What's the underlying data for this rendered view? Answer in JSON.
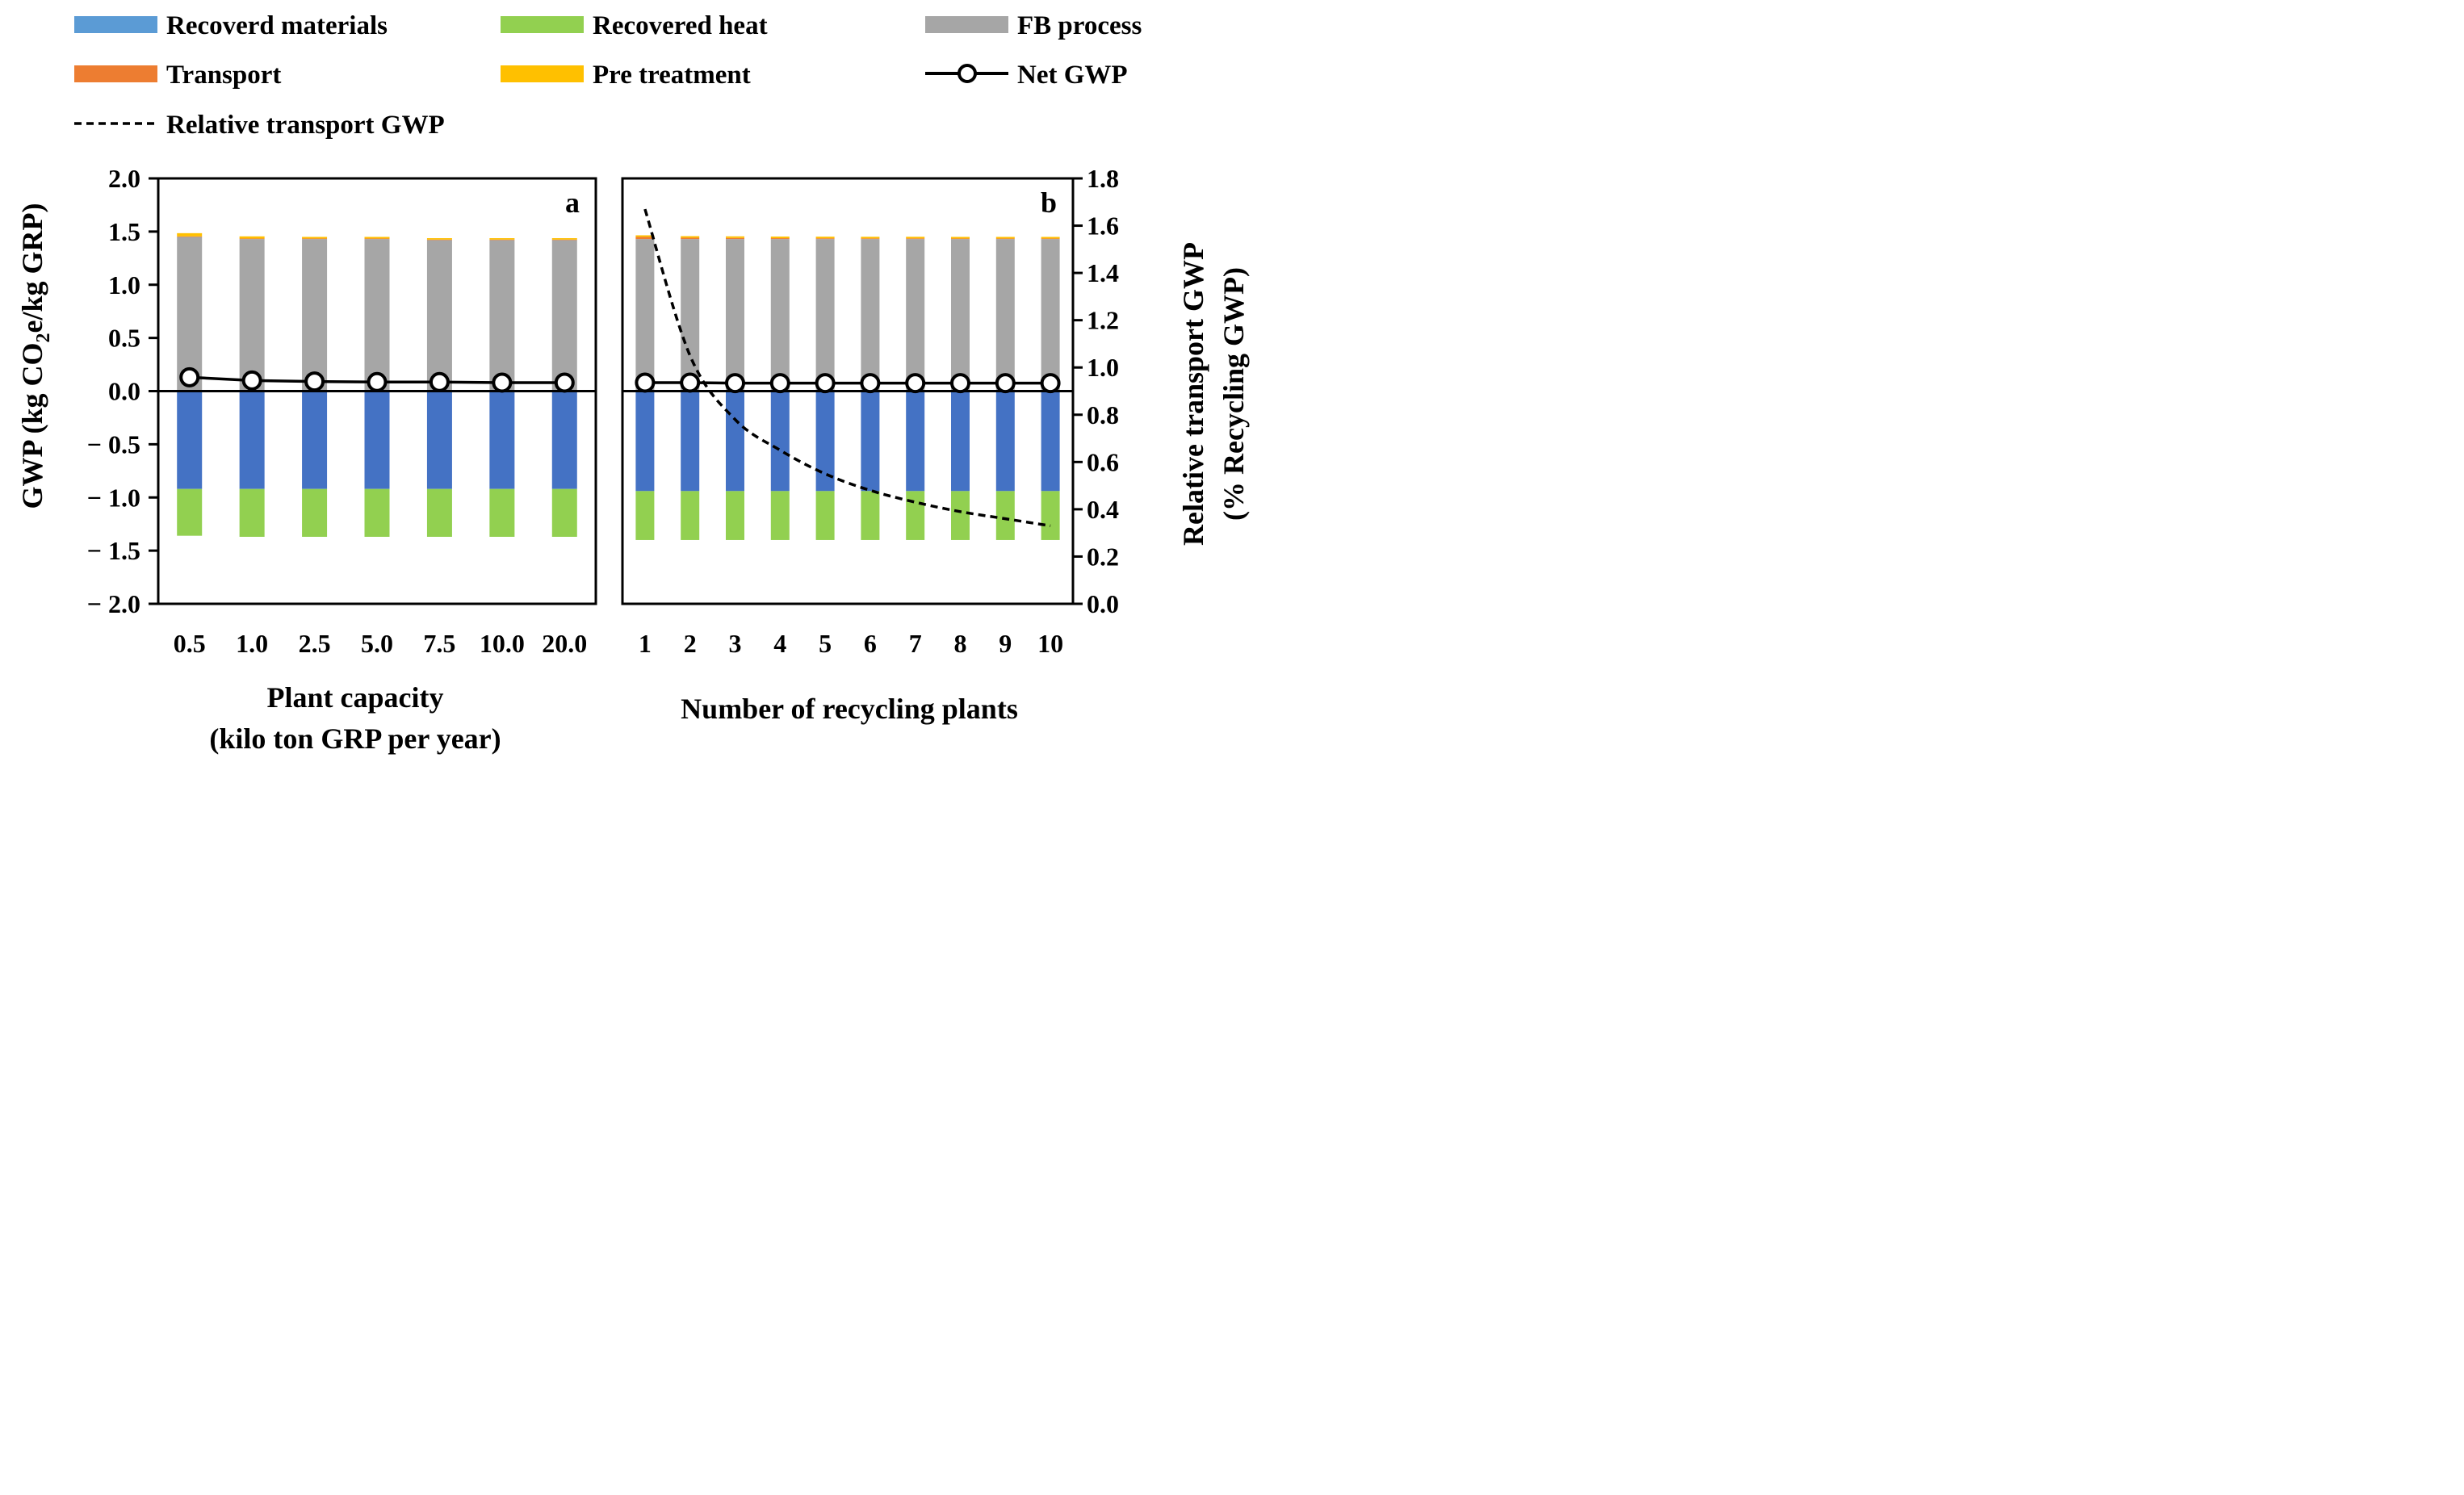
{
  "colors": {
    "recovered_materials": "#4472C4",
    "recovered_heat": "#92D050",
    "fb_process": "#A6A6A6",
    "transport": "#ED7D31",
    "pre_treatment": "#FFC000",
    "legend_materials_swatch": "#5B9BD5"
  },
  "legend": [
    {
      "key": "recovered_materials",
      "label": "Recoverd materials",
      "kind": "bar"
    },
    {
      "key": "recovered_heat",
      "label": "Recovered heat",
      "kind": "bar"
    },
    {
      "key": "fb_process",
      "label": "FB process",
      "kind": "bar"
    },
    {
      "key": "transport",
      "label": "Transport",
      "kind": "bar"
    },
    {
      "key": "pre_treatment",
      "label": "Pre treatment",
      "kind": "bar"
    },
    {
      "key": "net_gwp",
      "label": "Net GWP",
      "kind": "line-marker"
    },
    {
      "key": "relative_transport",
      "label": "Relative transport GWP",
      "kind": "dashed"
    }
  ],
  "chart_data": [
    {
      "type": "bar",
      "panel_label": "a",
      "stacked": true,
      "ylabel": "GWP (kg CO2e/kg GRP)",
      "ylabel_parts": [
        "GWP (kg CO",
        "2",
        "e/kg GRP)"
      ],
      "xlabel_lines": [
        "Plant capacity",
        "(kilo ton GRP per year)"
      ],
      "ylim": [
        -2.0,
        2.0
      ],
      "yticks": [
        "2.0",
        "1.5",
        "1.0",
        "0.5",
        "0.0",
        "− 0.5",
        "− 1.0",
        "− 1.5",
        "− 2.0"
      ],
      "ytick_values": [
        2.0,
        1.5,
        1.0,
        0.5,
        0.0,
        -0.5,
        -1.0,
        -1.5,
        -2.0
      ],
      "categories": [
        "0.5",
        "1.0",
        "2.5",
        "5.0",
        "7.5",
        "10.0",
        "20.0"
      ],
      "series": [
        {
          "key": "recovered_materials",
          "name": "Recoverd materials",
          "values": [
            -0.92,
            -0.92,
            -0.92,
            -0.92,
            -0.92,
            -0.92,
            -0.92
          ]
        },
        {
          "key": "recovered_heat",
          "name": "Recovered heat",
          "values": [
            -0.44,
            -0.45,
            -0.45,
            -0.45,
            -0.45,
            -0.45,
            -0.45
          ]
        },
        {
          "key": "fb_process",
          "name": "FB process",
          "values": [
            1.45,
            1.43,
            1.43,
            1.43,
            1.42,
            1.42,
            1.42
          ]
        },
        {
          "key": "transport",
          "name": "Transport",
          "values": [
            0.005,
            0.005,
            0.005,
            0.005,
            0.005,
            0.005,
            0.005
          ]
        },
        {
          "key": "pre_treatment",
          "name": "Pre treatment",
          "values": [
            0.03,
            0.02,
            0.015,
            0.015,
            0.013,
            0.013,
            0.013
          ]
        }
      ],
      "net_gwp": {
        "name": "Net GWP",
        "values": [
          0.13,
          0.1,
          0.09,
          0.085,
          0.085,
          0.08,
          0.08
        ]
      }
    },
    {
      "type": "bar",
      "panel_label": "b",
      "stacked": true,
      "ylabel_right_lines": [
        "Relative transport GWP",
        "(% Recycling GWP)"
      ],
      "xlabel_lines": [
        "Number of recycling plants"
      ],
      "ylim": [
        -2.0,
        2.0
      ],
      "ylim_right": [
        0.0,
        1.8
      ],
      "yticks_right": [
        "1.8",
        "1.6",
        "1.4",
        "1.2",
        "1.0",
        "0.8",
        "0.6",
        "0.4",
        "0.2",
        "0.0"
      ],
      "ytick_values_right": [
        1.8,
        1.6,
        1.4,
        1.2,
        1.0,
        0.8,
        0.6,
        0.4,
        0.2,
        0.0
      ],
      "categories": [
        "1",
        "2",
        "3",
        "4",
        "5",
        "6",
        "7",
        "8",
        "9",
        "10"
      ],
      "series": [
        {
          "key": "recovered_materials",
          "name": "Recoverd materials",
          "values": [
            -0.94,
            -0.94,
            -0.94,
            -0.94,
            -0.94,
            -0.94,
            -0.94,
            -0.94,
            -0.94,
            -0.94
          ]
        },
        {
          "key": "recovered_heat",
          "name": "Recovered heat",
          "values": [
            -0.46,
            -0.46,
            -0.46,
            -0.46,
            -0.46,
            -0.46,
            -0.46,
            -0.46,
            -0.46,
            -0.46
          ]
        },
        {
          "key": "fb_process",
          "name": "FB process",
          "values": [
            1.43,
            1.43,
            1.43,
            1.43,
            1.43,
            1.43,
            1.43,
            1.43,
            1.43,
            1.43
          ]
        },
        {
          "key": "transport",
          "name": "Transport",
          "values": [
            0.02,
            0.012,
            0.01,
            0.008,
            0.007,
            0.006,
            0.006,
            0.005,
            0.005,
            0.005
          ]
        },
        {
          "key": "pre_treatment",
          "name": "Pre treatment",
          "values": [
            0.015,
            0.015,
            0.015,
            0.015,
            0.015,
            0.015,
            0.015,
            0.015,
            0.015,
            0.015
          ]
        }
      ],
      "net_gwp": {
        "name": "Net GWP",
        "values": [
          0.08,
          0.08,
          0.075,
          0.075,
          0.075,
          0.075,
          0.075,
          0.075,
          0.075,
          0.075
        ]
      },
      "relative_transport": {
        "name": "Relative transport GWP",
        "x": [
          1,
          2,
          3,
          4,
          5,
          6,
          7,
          8,
          9,
          10
        ],
        "values": [
          1.67,
          1.05,
          0.78,
          0.65,
          0.55,
          0.48,
          0.43,
          0.39,
          0.36,
          0.33
        ]
      }
    }
  ]
}
